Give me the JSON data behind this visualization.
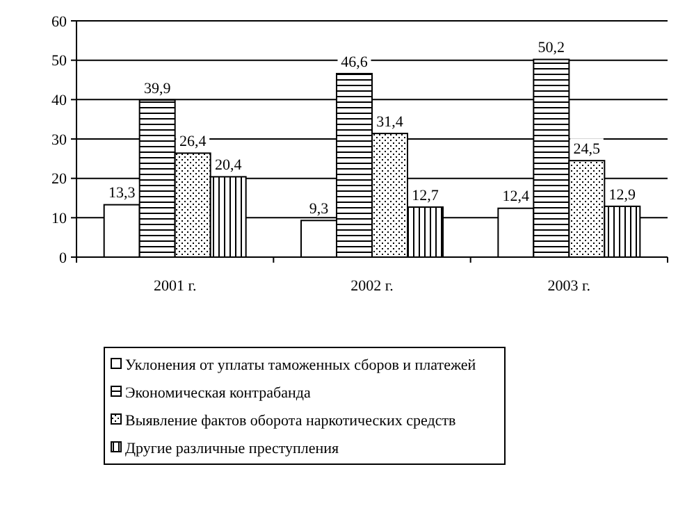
{
  "chart_data": {
    "type": "bar",
    "categories": [
      "2001 г.",
      "2002 г.",
      "2003 г."
    ],
    "series": [
      {
        "name": "Уклонения от уплаты таможенных сборов и платежей",
        "color": "#ffffff",
        "values": [
          13.3,
          9.3,
          12.4
        ]
      },
      {
        "name": "Экономическая контрабанда",
        "color": "#000000",
        "values": [
          39.9,
          46.6,
          50.2
        ]
      },
      {
        "name": "Выявление фактов оборота наркотических средств",
        "color": "#000000",
        "values": [
          26.4,
          31.4,
          24.5
        ]
      },
      {
        "name": "Другие различные преступления",
        "color": "#000000",
        "values": [
          20.4,
          12.7,
          12.9
        ]
      }
    ],
    "value_labels": [
      [
        "13,3",
        "9,3",
        "12,4"
      ],
      [
        "39,9",
        "46,6",
        "50,2"
      ],
      [
        "26,4",
        "31,4",
        "24,5"
      ],
      [
        "20,4",
        "12,7",
        "12,9"
      ]
    ],
    "ylim": [
      0,
      60
    ],
    "yticks": [
      0,
      10,
      20,
      30,
      40,
      50,
      60
    ],
    "grid": "y",
    "legend": "bottom"
  }
}
